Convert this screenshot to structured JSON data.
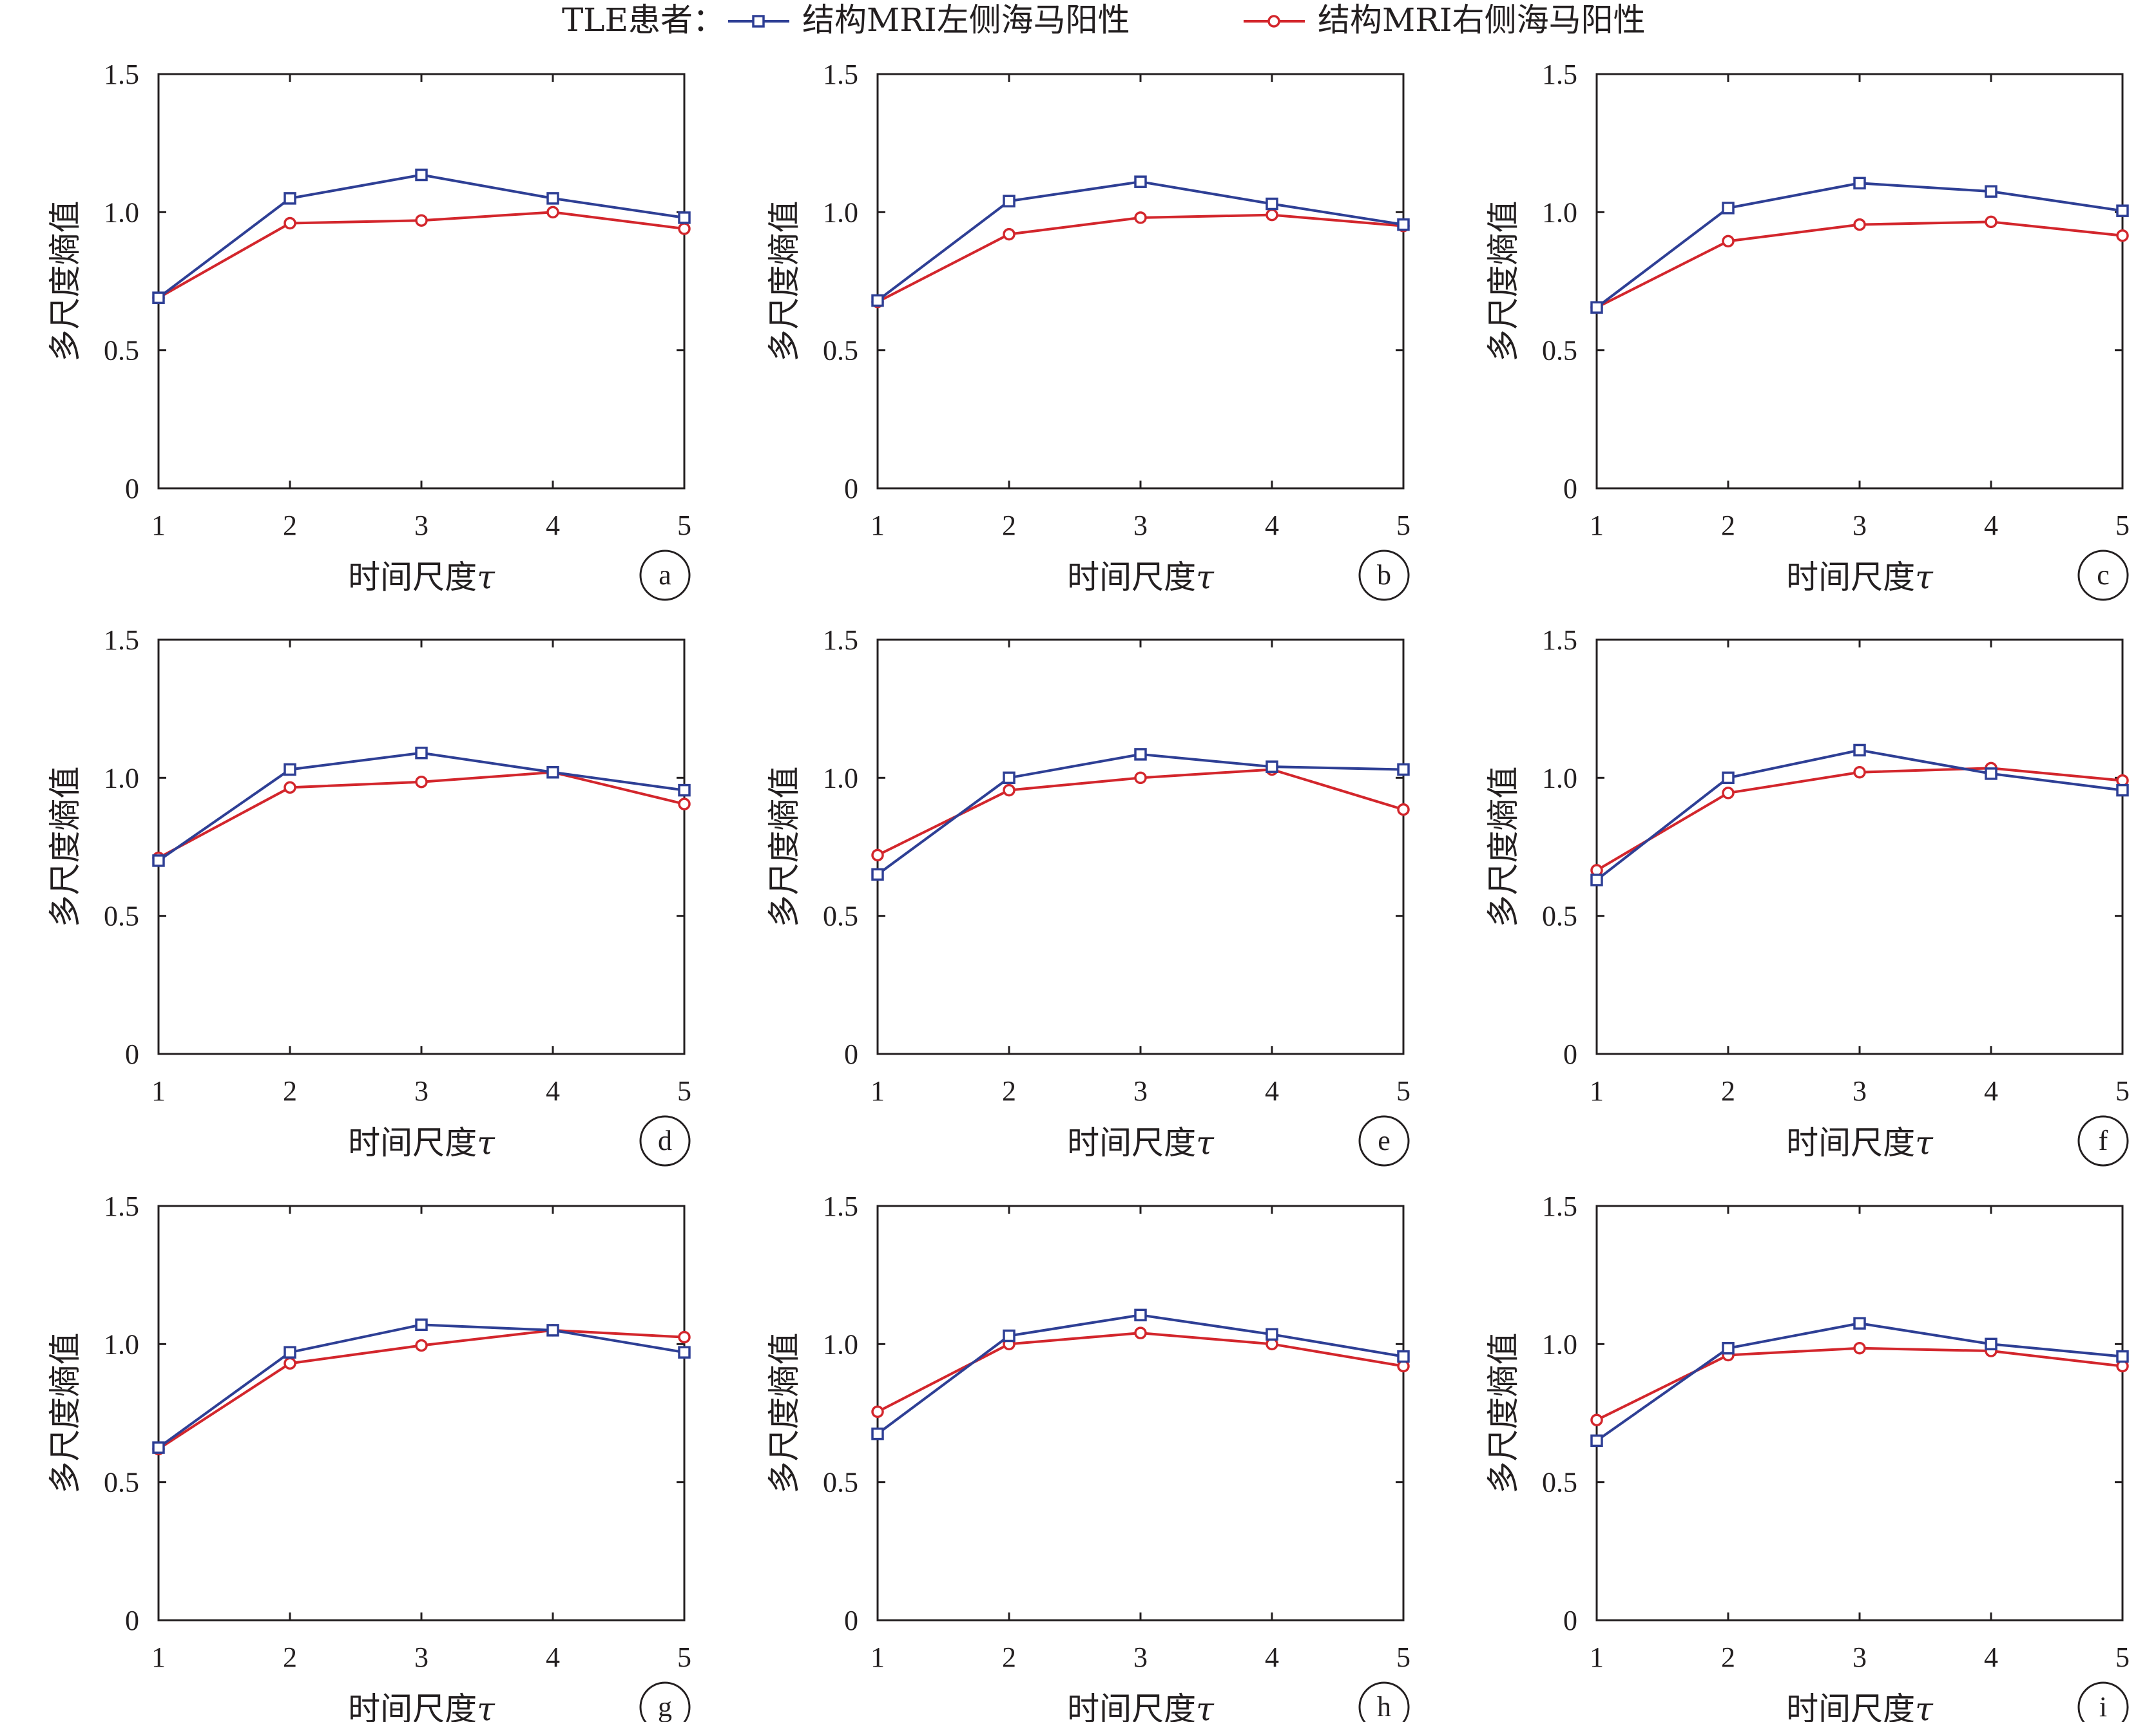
{
  "legend": {
    "prefix": "TLE患者：",
    "items": [
      {
        "label": "结构MRI左侧海马阳性",
        "color": "#2e3f95",
        "marker": "square"
      },
      {
        "label": "结构MRI右侧海马阳性",
        "color": "#d3262c",
        "marker": "circle"
      }
    ]
  },
  "chart_data": [
    {
      "type": "line",
      "panel": "a",
      "categories": [
        1,
        2,
        3,
        4,
        5
      ],
      "xlabel": "时间尺度",
      "xlabel_symbol": "τ",
      "ylabel": "多尺度熵值",
      "ylim": [
        0,
        1.5
      ],
      "yticks": [
        "0",
        "0.5",
        "1.0",
        "1.5"
      ],
      "series": [
        {
          "name": "结构MRI左侧海马阳性",
          "values": [
            0.69,
            1.05,
            1.135,
            1.05,
            0.98
          ]
        },
        {
          "name": "结构MRI右侧海马阳性",
          "values": [
            0.69,
            0.96,
            0.97,
            1.0,
            0.94
          ]
        }
      ]
    },
    {
      "type": "line",
      "panel": "b",
      "categories": [
        1,
        2,
        3,
        4,
        5
      ],
      "xlabel": "时间尺度",
      "xlabel_symbol": "τ",
      "ylabel": "多尺度熵值",
      "ylim": [
        0,
        1.5
      ],
      "yticks": [
        "0",
        "0.5",
        "1.0",
        "1.5"
      ],
      "series": [
        {
          "name": "结构MRI左侧海马阳性",
          "values": [
            0.68,
            1.04,
            1.11,
            1.03,
            0.955
          ]
        },
        {
          "name": "结构MRI右侧海马阳性",
          "values": [
            0.675,
            0.92,
            0.98,
            0.99,
            0.95
          ]
        }
      ]
    },
    {
      "type": "line",
      "panel": "c",
      "categories": [
        1,
        2,
        3,
        4,
        5
      ],
      "xlabel": "时间尺度",
      "xlabel_symbol": "τ",
      "ylabel": "多尺度熵值",
      "ylim": [
        0,
        1.5
      ],
      "yticks": [
        "0",
        "0.5",
        "1.0",
        "1.5"
      ],
      "series": [
        {
          "name": "结构MRI左侧海马阳性",
          "values": [
            0.655,
            1.015,
            1.105,
            1.075,
            1.005
          ]
        },
        {
          "name": "结构MRI右侧海马阳性",
          "values": [
            0.655,
            0.895,
            0.955,
            0.965,
            0.915
          ]
        }
      ]
    },
    {
      "type": "line",
      "panel": "d",
      "categories": [
        1,
        2,
        3,
        4,
        5
      ],
      "xlabel": "时间尺度",
      "xlabel_symbol": "τ",
      "ylabel": "多尺度熵值",
      "ylim": [
        0,
        1.5
      ],
      "yticks": [
        "0",
        "0.5",
        "1.0",
        "1.5"
      ],
      "series": [
        {
          "name": "结构MRI左侧海马阳性",
          "values": [
            0.7,
            1.03,
            1.09,
            1.02,
            0.955
          ]
        },
        {
          "name": "结构MRI右侧海马阳性",
          "values": [
            0.71,
            0.965,
            0.985,
            1.02,
            0.905
          ]
        }
      ]
    },
    {
      "type": "line",
      "panel": "e",
      "categories": [
        1,
        2,
        3,
        4,
        5
      ],
      "xlabel": "时间尺度",
      "xlabel_symbol": "τ",
      "ylabel": "多尺度熵值",
      "ylim": [
        0,
        1.5
      ],
      "yticks": [
        "0",
        "0.5",
        "1.0",
        "1.5"
      ],
      "series": [
        {
          "name": "结构MRI左侧海马阳性",
          "values": [
            0.65,
            1.0,
            1.085,
            1.04,
            1.03
          ]
        },
        {
          "name": "结构MRI右侧海马阳性",
          "values": [
            0.72,
            0.955,
            1.0,
            1.03,
            0.885
          ]
        }
      ]
    },
    {
      "type": "line",
      "panel": "f",
      "categories": [
        1,
        2,
        3,
        4,
        5
      ],
      "xlabel": "时间尺度",
      "xlabel_symbol": "τ",
      "ylabel": "多尺度熵值",
      "ylim": [
        0,
        1.5
      ],
      "yticks": [
        "0",
        "0.5",
        "1.0",
        "1.5"
      ],
      "series": [
        {
          "name": "结构MRI左侧海马阳性",
          "values": [
            0.63,
            1.0,
            1.1,
            1.015,
            0.955
          ]
        },
        {
          "name": "结构MRI右侧海马阳性",
          "values": [
            0.665,
            0.945,
            1.02,
            1.035,
            0.99
          ]
        }
      ]
    },
    {
      "type": "line",
      "panel": "g",
      "categories": [
        1,
        2,
        3,
        4,
        5
      ],
      "xlabel": "时间尺度",
      "xlabel_symbol": "τ",
      "ylabel": "多尺度熵值",
      "ylim": [
        0,
        1.5
      ],
      "yticks": [
        "0",
        "0.5",
        "1.0",
        "1.5"
      ],
      "series": [
        {
          "name": "结构MRI左侧海马阳性",
          "values": [
            0.625,
            0.97,
            1.07,
            1.05,
            0.97
          ]
        },
        {
          "name": "结构MRI右侧海马阳性",
          "values": [
            0.62,
            0.93,
            0.995,
            1.05,
            1.025
          ]
        }
      ]
    },
    {
      "type": "line",
      "panel": "h",
      "categories": [
        1,
        2,
        3,
        4,
        5
      ],
      "xlabel": "时间尺度",
      "xlabel_symbol": "τ",
      "ylabel": "多尺度熵值",
      "ylim": [
        0,
        1.5
      ],
      "yticks": [
        "0",
        "0.5",
        "1.0",
        "1.5"
      ],
      "series": [
        {
          "name": "结构MRI左侧海马阳性",
          "values": [
            0.675,
            1.03,
            1.105,
            1.035,
            0.955
          ]
        },
        {
          "name": "结构MRI右侧海马阳性",
          "values": [
            0.755,
            1.0,
            1.04,
            1.0,
            0.92
          ]
        }
      ]
    },
    {
      "type": "line",
      "panel": "i",
      "categories": [
        1,
        2,
        3,
        4,
        5
      ],
      "xlabel": "时间尺度",
      "xlabel_symbol": "τ",
      "ylabel": "多尺度熵值",
      "ylim": [
        0,
        1.5
      ],
      "yticks": [
        "0",
        "0.5",
        "1.0",
        "1.5"
      ],
      "series": [
        {
          "name": "结构MRI左侧海马阳性",
          "values": [
            0.65,
            0.985,
            1.075,
            1.0,
            0.955
          ]
        },
        {
          "name": "结构MRI右侧海马阳性",
          "values": [
            0.725,
            0.96,
            0.985,
            0.975,
            0.92
          ]
        }
      ]
    }
  ]
}
